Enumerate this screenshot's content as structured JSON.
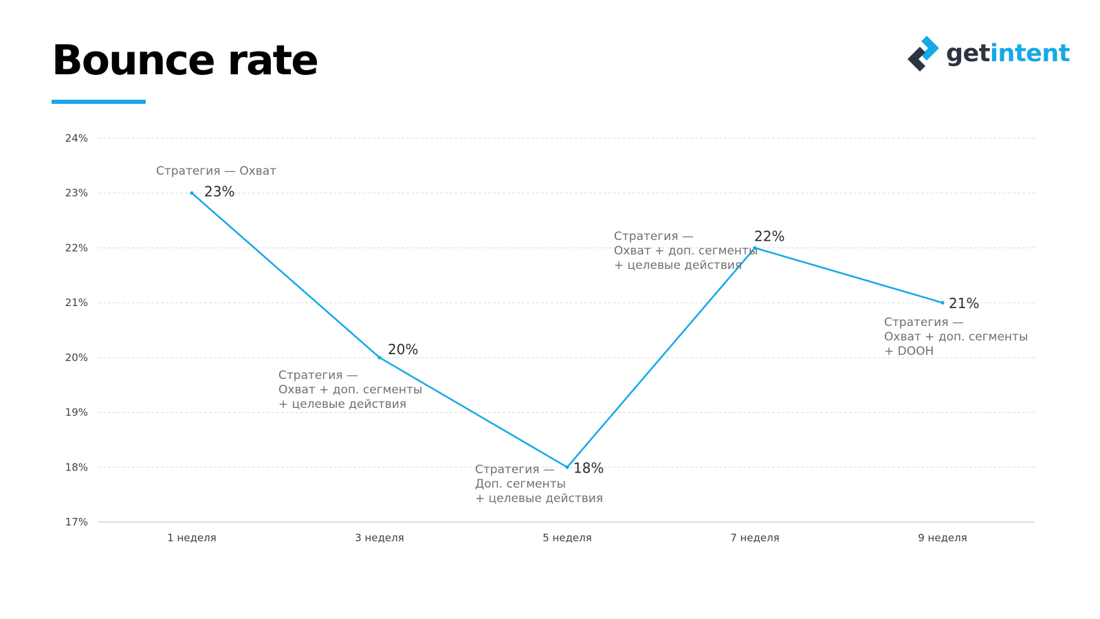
{
  "header": {
    "title": "Bounce rate",
    "accent_color": "#15a9e8"
  },
  "logo": {
    "icon": "getintent-logo-icon",
    "text_get": "get",
    "text_intent": "intent"
  },
  "chart_data": {
    "type": "line",
    "title": "Bounce rate",
    "xlabel": "",
    "ylabel": "",
    "categories": [
      "1 неделя",
      "3 неделя",
      "5 неделя",
      "7 неделя",
      "9 неделя"
    ],
    "series": [
      {
        "values": [
          23,
          20,
          18,
          22,
          21
        ],
        "color": "#15a9e8"
      }
    ],
    "data_labels": [
      "23%",
      "20%",
      "18%",
      "22%",
      "21%"
    ],
    "ylim": [
      17,
      24
    ],
    "yticks": [
      24,
      23,
      22,
      21,
      20,
      19,
      18,
      17
    ],
    "ytick_labels": [
      "24%",
      "23%",
      "22%",
      "21%",
      "20%",
      "19%",
      "18%",
      "17%"
    ],
    "grid": true,
    "legend": "none",
    "annotations": [
      [
        "Стратегия — Охват"
      ],
      [
        "Стратегия —",
        "Охват + доп. сегменты",
        "+ целевые действия"
      ],
      [
        "Стратегия —",
        "Доп. сегменты",
        "+ целевые действия"
      ],
      [
        "Стратегия —",
        "Охват + доп. сегменты",
        "+ целевые действия"
      ],
      [
        "Стратегия —",
        "Охват + доп. сегменты",
        "+ DOOH"
      ]
    ]
  }
}
